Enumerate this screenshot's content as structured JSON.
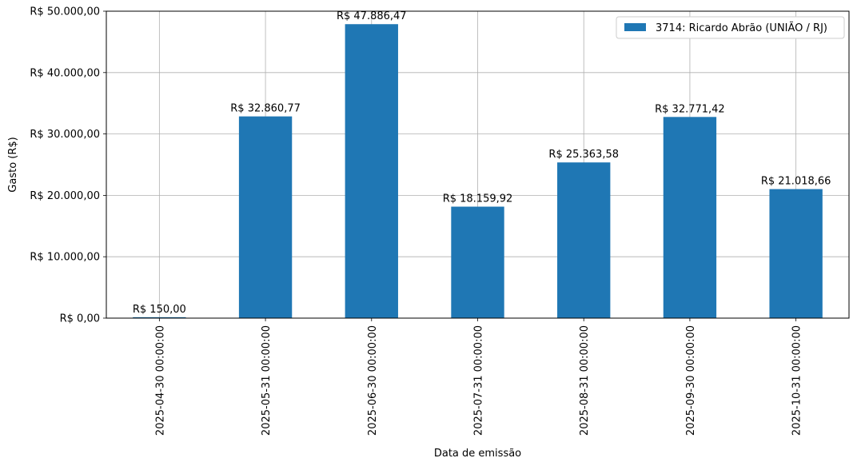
{
  "chart_data": {
    "type": "bar",
    "title": "",
    "xlabel": "Data de emissão",
    "ylabel": "Gasto (R$)",
    "ylim": [
      0,
      50000
    ],
    "y_ticks": [
      0,
      10000,
      20000,
      30000,
      40000,
      50000
    ],
    "y_tick_labels": [
      "R$ 0,00",
      "R$ 10.000,00",
      "R$ 20.000,00",
      "R$ 30.000,00",
      "R$ 40.000,00",
      "R$ 50.000,00"
    ],
    "grid": true,
    "legend_position": "top-right",
    "categories": [
      "2025-04-30 00:00:00",
      "2025-05-31 00:00:00",
      "2025-06-30 00:00:00",
      "2025-07-31 00:00:00",
      "2025-08-31 00:00:00",
      "2025-09-30 00:00:00",
      "2025-10-31 00:00:00"
    ],
    "series": [
      {
        "name": "3714: Ricardo Abrão (UNIÃO / RJ)",
        "color": "#1f77b4",
        "values": [
          150.0,
          32860.77,
          47886.47,
          18159.92,
          25363.58,
          32771.42,
          21018.66
        ],
        "labels": [
          "R$ 150,00",
          "R$ 32.860,77",
          "R$ 47.886,47",
          "R$ 18.159,92",
          "R$ 25.363,58",
          "R$ 32.771,42",
          "R$ 21.018,66"
        ]
      }
    ]
  }
}
